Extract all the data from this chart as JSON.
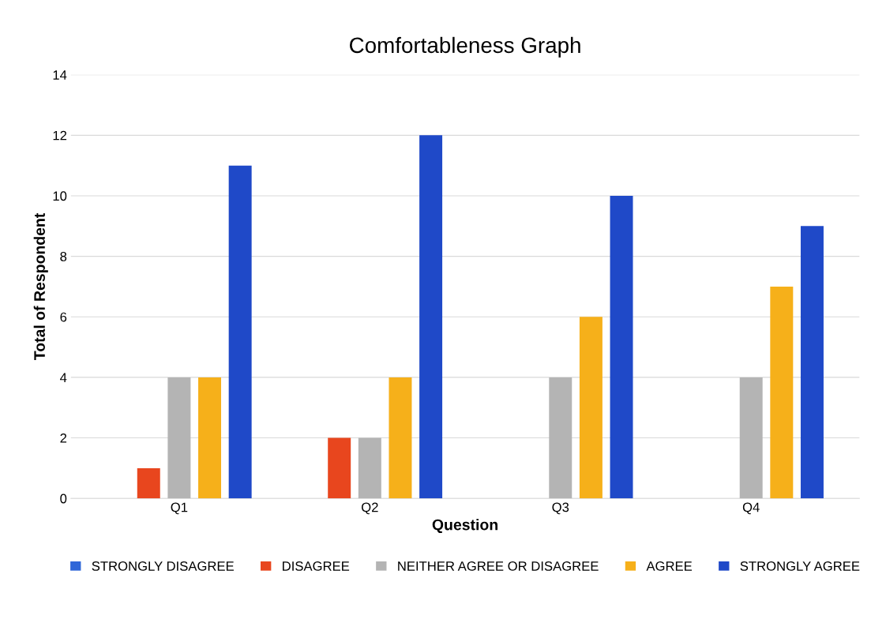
{
  "chart_data": {
    "type": "bar",
    "title": "Comfortableness Graph",
    "xlabel": "Question",
    "ylabel": "Total of Respondent",
    "categories": [
      "Q1",
      "Q2",
      "Q3",
      "Q4"
    ],
    "series": [
      {
        "name": "STRONGLY DISAGREE",
        "color": "#2f66d8",
        "values": [
          0,
          0,
          0,
          0
        ]
      },
      {
        "name": "DISAGREE",
        "color": "#e8461e",
        "values": [
          1,
          2,
          0,
          0
        ]
      },
      {
        "name": "NEITHER AGREE OR DISAGREE",
        "color": "#b4b4b4",
        "values": [
          4,
          2,
          4,
          4
        ]
      },
      {
        "name": "AGREE",
        "color": "#f6b01a",
        "values": [
          4,
          4,
          6,
          7
        ]
      },
      {
        "name": "STRONGLY AGREE",
        "color": "#1f49c8",
        "values": [
          11,
          12,
          10,
          9
        ]
      }
    ],
    "ylim": [
      0,
      14
    ],
    "yticks": [
      0,
      2,
      4,
      6,
      8,
      10,
      12,
      14
    ],
    "grid": "y",
    "legend": "bottom"
  }
}
